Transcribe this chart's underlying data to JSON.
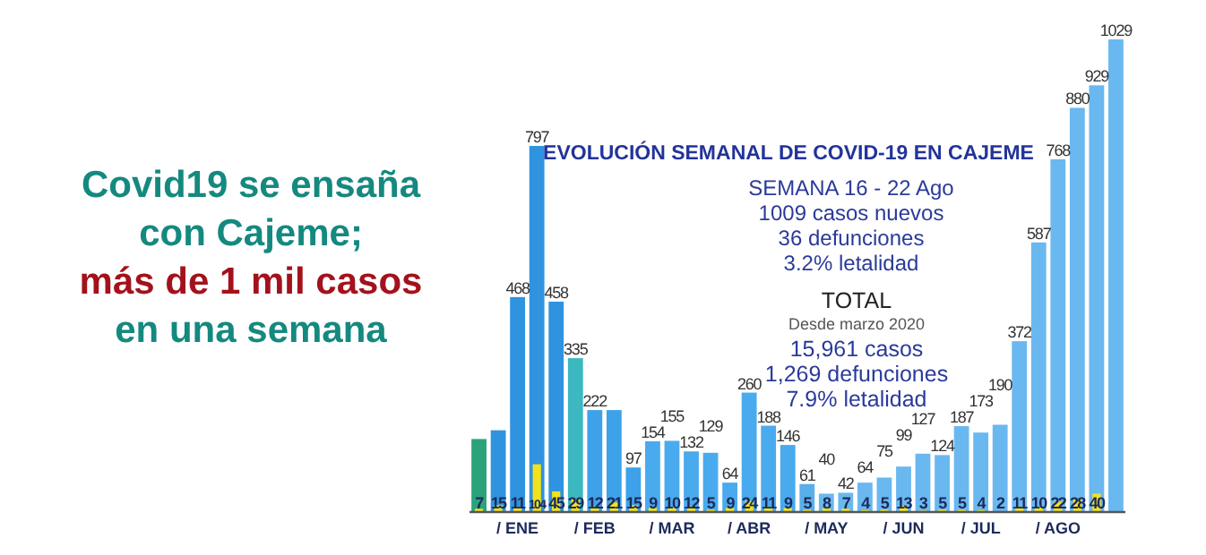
{
  "chart_data": {
    "type": "bar",
    "title": "EVOLUCIÓN SEMANAL DE COVID-19 EN CAJEME",
    "categories": [
      null,
      null,
      "/ ENE",
      null,
      null,
      null,
      "/ FEB",
      null,
      null,
      null,
      "/ MAR",
      null,
      null,
      null,
      "/ ABR",
      null,
      null,
      null,
      "/ MAY",
      null,
      null,
      null,
      "/ JUN",
      null,
      null,
      null,
      "/ JUL",
      null,
      null,
      null,
      "/ AGO",
      null,
      null,
      null
    ],
    "series": [
      {
        "colors": [
          "#2aa37a",
          "#2f93e0",
          "#2f93e0",
          "#2f93e0",
          "#2f93e0",
          "#3cb8c0",
          "#3ea2ea",
          "#3ea2ea",
          "#3ea2ea",
          "#4aaaee",
          "#4aaaee",
          "#4aaaee",
          "#4aaaee",
          "#4aaaee",
          "#4aaaee",
          "#4aaaee",
          "#4aaaee",
          "#5aaeea",
          "#6ab8f0",
          "#6ab8f0",
          "#6ab8f0",
          "#6ab8f0",
          "#6ab8f0",
          "#6ab8f0",
          "#6ab8f0",
          "#6ab8f0",
          "#6ab8f0",
          "#6ab8f0",
          "#6ab8f0",
          "#6ab8f0",
          "#6ab8f0",
          "#6ab8f0",
          "#6ab8f0",
          "#6ab8f0"
        ],
        "values": [
          159,
          178,
          468,
          797,
          458,
          335,
          222,
          222,
          97,
          154,
          155,
          132,
          129,
          64,
          260,
          188,
          146,
          61,
          40,
          42,
          64,
          75,
          99,
          127,
          124,
          187,
          173,
          190,
          372,
          587,
          768,
          880,
          929,
          1029
        ],
        "value_labels": [
          null,
          null,
          "468",
          "797",
          "458",
          "335",
          "222",
          null,
          "97",
          "154",
          "155",
          "132",
          "129",
          "64",
          "260",
          "188",
          "146",
          "61",
          "40",
          "42",
          "64",
          "75",
          "99",
          "127",
          "124",
          "187",
          "173",
          "190",
          "372",
          "587",
          "768",
          "880",
          "929",
          "1029"
        ]
      },
      {
        "color": "#f2e21c",
        "values": [
          7,
          15,
          11,
          104,
          45,
          29,
          12,
          21,
          15,
          9,
          10,
          12,
          5,
          9,
          24,
          11,
          9,
          5,
          8,
          7,
          4,
          5,
          13,
          3,
          5,
          5,
          4,
          2,
          11,
          10,
          22,
          28,
          40,
          null
        ],
        "value_labels": [
          "7",
          "15",
          "11",
          "104",
          "45",
          "29",
          "12",
          "21",
          "15",
          "9",
          "10",
          "12",
          "5",
          "9",
          "24",
          "11",
          "9",
          "5",
          "8",
          "7",
          "4",
          "5",
          "13",
          "3",
          "5",
          "5",
          "4",
          "2",
          "11",
          "10",
          "22",
          "28",
          "40",
          null
        ]
      }
    ],
    "annotations": [
      "Covid19 se ensaña",
      "con Cajeme;",
      "más de 1 mil casos",
      "en una semana",
      "SEMANA 16 - 22 Ago",
      "1009 casos nuevos",
      "36 defunciones",
      "3.2% letalidad",
      "TOTAL",
      "Desde marzo 2020",
      "15,961 casos",
      "1,269 defunciones",
      "7.9% letalidad"
    ]
  }
}
